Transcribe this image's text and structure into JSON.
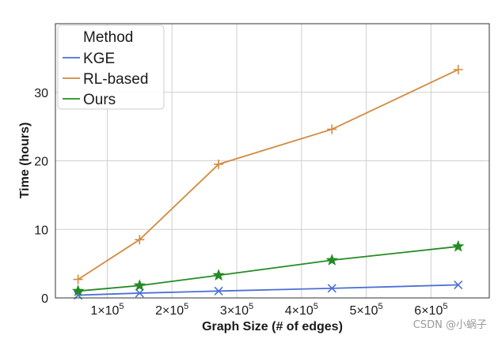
{
  "chart_data": {
    "type": "line",
    "title": "",
    "xlabel": "Graph Size (# of edges)",
    "ylabel": "Time (hours)",
    "xlim": [
      20000,
      690000
    ],
    "ylim": [
      0,
      40
    ],
    "x_ticks": [
      {
        "value": 100000,
        "mantissa": "1",
        "exp": "5"
      },
      {
        "value": 200000,
        "mantissa": "2",
        "exp": "5"
      },
      {
        "value": 300000,
        "mantissa": "3",
        "exp": "5"
      },
      {
        "value": 400000,
        "mantissa": "4",
        "exp": "5"
      },
      {
        "value": 500000,
        "mantissa": "5",
        "exp": "5"
      },
      {
        "value": 600000,
        "mantissa": "6",
        "exp": "5"
      }
    ],
    "y_ticks": [
      0,
      10,
      20,
      30
    ],
    "grid": true,
    "legend": {
      "title": "Method",
      "position": "top-left"
    },
    "x": [
      55000,
      150000,
      272000,
      447000,
      642000
    ],
    "series": [
      {
        "name": "KGE",
        "color": "#4c6fd6",
        "marker": "x",
        "values": [
          0.4,
          0.7,
          1.0,
          1.4,
          1.9
        ]
      },
      {
        "name": "RL-based",
        "color": "#d38a3e",
        "marker": "+",
        "values": [
          2.7,
          8.5,
          19.5,
          24.6,
          33.3
        ]
      },
      {
        "name": "Ours",
        "color": "#238b23",
        "marker": "star",
        "values": [
          1.0,
          1.8,
          3.3,
          5.5,
          7.5
        ]
      }
    ]
  },
  "watermark": "CSDN @小蜗子"
}
